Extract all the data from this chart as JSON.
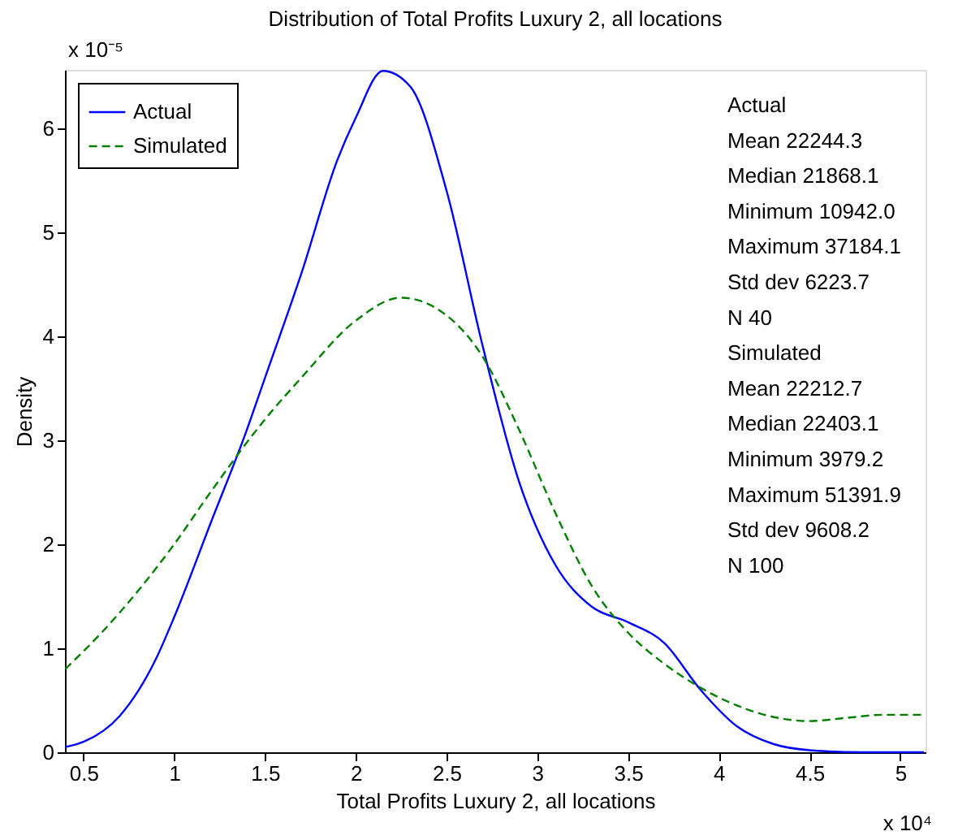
{
  "chart_data": {
    "type": "line",
    "title": "Distribution of Total Profits Luxury 2, all locations",
    "xlabel": "Total Profits Luxury 2, all locations",
    "ylabel": "Density",
    "xlim": [
      0.398,
      5.139
    ],
    "xticks": [
      0.5,
      1,
      1.5,
      2,
      2.5,
      3,
      3.5,
      4,
      4.5,
      5
    ],
    "ylim": [
      0,
      6.56
    ],
    "yticks": [
      0,
      1,
      2,
      3,
      4,
      5,
      6
    ],
    "grid": false,
    "legend": "top left",
    "marker": "none",
    "series": [
      {
        "name": "Actual",
        "color": "#0000ff",
        "line_style": "solid",
        "x": [
          0.4,
          0.5,
          0.7,
          0.9,
          1.0,
          1.2,
          1.4,
          1.5,
          1.7,
          1.9,
          2.0,
          2.15,
          2.3,
          2.5,
          2.7,
          2.9,
          3.1,
          3.3,
          3.5,
          3.7,
          3.9,
          4.1,
          4.3,
          4.5,
          4.8,
          5.13
        ],
        "values": [
          0.05,
          0.1,
          0.35,
          0.9,
          1.3,
          2.2,
          3.1,
          3.6,
          4.6,
          5.7,
          6.1,
          6.55,
          6.4,
          5.4,
          3.9,
          2.6,
          1.8,
          1.4,
          1.25,
          1.05,
          0.6,
          0.25,
          0.08,
          0.02,
          0,
          0
        ]
      },
      {
        "name": "Simulated",
        "color": "#008000",
        "line_style": "dashed",
        "x": [
          0.4,
          0.6,
          0.8,
          1.0,
          1.2,
          1.5,
          1.7,
          2.0,
          2.25,
          2.5,
          2.7,
          2.9,
          3.1,
          3.3,
          3.5,
          3.7,
          3.9,
          4.1,
          4.3,
          4.5,
          4.7,
          4.9,
          5.13
        ],
        "values": [
          0.8,
          1.15,
          1.55,
          2.0,
          2.5,
          3.2,
          3.6,
          4.15,
          4.37,
          4.2,
          3.8,
          3.1,
          2.3,
          1.6,
          1.15,
          0.85,
          0.62,
          0.45,
          0.34,
          0.3,
          0.33,
          0.36,
          0.36
        ]
      }
    ],
    "annotations": [
      "Actual",
      "Mean    22244.3",
      "Median  21868.1",
      "Minimum 10942.0",
      "Maximum 37184.1",
      "Std dev 6223.7",
      "N       40",
      "Simulated",
      "Mean    22212.7",
      "Median  22403.1",
      "Minimum 3979.2",
      "Maximum 51391.9",
      "Std dev 9608.2",
      "N       100",
      "x 10⁻⁵",
      "x 10⁴"
    ]
  }
}
